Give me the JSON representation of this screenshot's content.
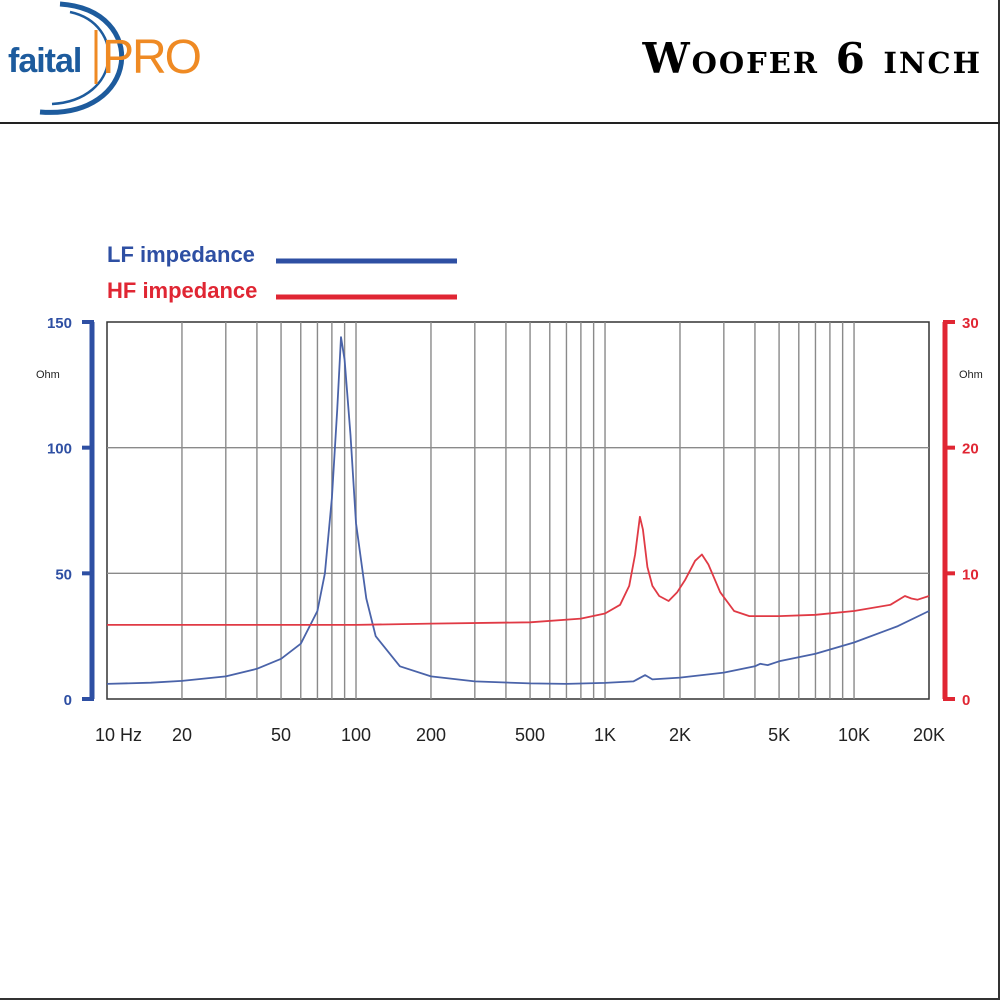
{
  "brand": {
    "logo_text_faital": "faital",
    "logo_text_pro": "PRO",
    "colors": {
      "faital": "#1d5b9d",
      "pro": "#ef8a23"
    }
  },
  "header": {
    "title": "Woofer 6 inch"
  },
  "chart_data": {
    "type": "line",
    "x_scale": "log",
    "xlim": [
      10,
      20000
    ],
    "x_ticks": [
      10,
      20,
      50,
      100,
      200,
      500,
      1000,
      2000,
      5000,
      10000,
      20000
    ],
    "x_tick_labels": [
      "10  Hz",
      "20",
      "50",
      "100",
      "200",
      "500",
      "1K",
      "2K",
      "5K",
      "10K",
      "20K"
    ],
    "grid": true,
    "legend_position": "top-left",
    "y_left": {
      "range": [
        0,
        150
      ],
      "ticks": [
        0,
        50,
        100,
        150
      ],
      "tick_labels": [
        "0",
        "50",
        "100",
        "150"
      ],
      "unit": "Ohm",
      "color": "#2e4fa3"
    },
    "y_right": {
      "range": [
        0,
        30
      ],
      "ticks": [
        0,
        10,
        20,
        30
      ],
      "tick_labels": [
        "0",
        "10",
        "20",
        "30"
      ],
      "unit": "Ohm",
      "color": "#e02633"
    },
    "series": [
      {
        "name": "LF impedance",
        "axis": "left",
        "color": "#4a63a9",
        "points": [
          [
            10,
            6
          ],
          [
            15,
            6.5
          ],
          [
            20,
            7.2
          ],
          [
            30,
            9
          ],
          [
            40,
            12
          ],
          [
            50,
            16
          ],
          [
            60,
            22
          ],
          [
            70,
            35
          ],
          [
            75,
            50
          ],
          [
            80,
            80
          ],
          [
            84,
            115
          ],
          [
            87,
            144
          ],
          [
            90,
            135
          ],
          [
            95,
            105
          ],
          [
            100,
            70
          ],
          [
            110,
            40
          ],
          [
            120,
            25
          ],
          [
            150,
            13
          ],
          [
            200,
            9
          ],
          [
            300,
            7
          ],
          [
            500,
            6.2
          ],
          [
            700,
            6
          ],
          [
            1000,
            6.4
          ],
          [
            1300,
            7
          ],
          [
            1450,
            9.5
          ],
          [
            1550,
            7.8
          ],
          [
            2000,
            8.5
          ],
          [
            3000,
            10.5
          ],
          [
            4000,
            13
          ],
          [
            4200,
            14
          ],
          [
            4500,
            13.5
          ],
          [
            5000,
            15
          ],
          [
            7000,
            18
          ],
          [
            10000,
            22.5
          ],
          [
            15000,
            29
          ],
          [
            20000,
            35
          ]
        ]
      },
      {
        "name": "HF impedance",
        "axis": "right",
        "color": "#e03a45",
        "points": [
          [
            10,
            5.9
          ],
          [
            100,
            5.9
          ],
          [
            200,
            6
          ],
          [
            500,
            6.1
          ],
          [
            800,
            6.4
          ],
          [
            1000,
            6.8
          ],
          [
            1150,
            7.5
          ],
          [
            1250,
            9
          ],
          [
            1320,
            11.5
          ],
          [
            1380,
            14.5
          ],
          [
            1420,
            13.5
          ],
          [
            1480,
            10.5
          ],
          [
            1550,
            9
          ],
          [
            1650,
            8.2
          ],
          [
            1800,
            7.8
          ],
          [
            1950,
            8.5
          ],
          [
            2100,
            9.5
          ],
          [
            2300,
            11
          ],
          [
            2450,
            11.5
          ],
          [
            2600,
            10.7
          ],
          [
            2900,
            8.5
          ],
          [
            3300,
            7
          ],
          [
            3800,
            6.6
          ],
          [
            5000,
            6.6
          ],
          [
            7000,
            6.7
          ],
          [
            10000,
            7
          ],
          [
            14000,
            7.5
          ],
          [
            16000,
            8.2
          ],
          [
            17000,
            8
          ],
          [
            18000,
            7.9
          ],
          [
            20000,
            8.2
          ]
        ]
      }
    ]
  }
}
